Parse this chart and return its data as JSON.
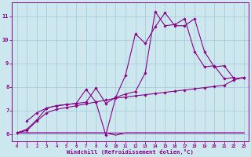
{
  "xlabel": "Windchill (Refroidissement éolien,°C)",
  "background_color": "#cce8ee",
  "line_color": "#880088",
  "xlim": [
    -0.5,
    23.5
  ],
  "ylim": [
    5.7,
    11.6
  ],
  "xticks": [
    0,
    1,
    2,
    3,
    4,
    5,
    6,
    7,
    8,
    9,
    10,
    11,
    12,
    13,
    14,
    15,
    16,
    17,
    18,
    19,
    20,
    21,
    22,
    23
  ],
  "yticks": [
    6,
    7,
    8,
    9,
    10,
    11
  ],
  "line1_x": [
    0,
    1,
    2,
    3,
    4,
    5,
    6,
    7,
    8,
    9,
    10,
    11,
    12,
    13,
    14,
    15,
    16,
    17,
    18,
    19,
    20,
    21,
    22,
    23
  ],
  "line1_y": [
    6.05,
    6.05,
    6.05,
    6.05,
    6.05,
    6.05,
    6.05,
    6.05,
    6.05,
    6.05,
    5.95,
    6.05,
    6.05,
    6.05,
    6.05,
    6.05,
    6.05,
    6.05,
    6.05,
    6.05,
    6.05,
    6.05,
    6.05,
    6.05
  ],
  "line2_x": [
    0,
    1,
    2,
    3,
    4,
    5,
    6,
    7,
    8,
    9,
    10,
    11,
    12,
    13,
    14,
    15,
    16,
    17,
    18,
    19,
    20,
    21,
    22,
    23
  ],
  "line2_y": [
    6.05,
    6.05,
    6.05,
    6.05,
    6.05,
    6.05,
    6.05,
    6.05,
    6.05,
    6.05,
    6.05,
    6.05,
    6.05,
    6.05,
    6.05,
    6.05,
    6.05,
    6.05,
    6.05,
    6.05,
    6.05,
    6.05,
    6.05,
    6.05
  ],
  "line3_x": [
    1,
    2,
    3,
    4,
    5,
    6,
    7,
    8,
    9,
    10,
    11,
    12,
    13,
    14,
    15,
    16,
    17,
    18,
    19,
    20,
    21,
    22,
    23
  ],
  "line3_y": [
    6.55,
    6.9,
    7.1,
    7.2,
    7.25,
    7.3,
    7.35,
    7.95,
    7.3,
    7.55,
    8.5,
    10.25,
    9.85,
    10.55,
    11.15,
    10.6,
    10.6,
    10.9,
    9.5,
    8.85,
    8.9,
    8.35,
    8.4
  ],
  "line4_x": [
    0,
    1,
    2,
    3,
    4,
    5,
    6,
    7,
    8,
    9,
    10,
    11,
    12,
    13,
    14,
    15,
    16,
    17,
    18,
    19,
    20,
    21,
    22,
    23
  ],
  "line4_y": [
    6.05,
    6.15,
    6.55,
    6.9,
    7.05,
    7.12,
    7.2,
    7.28,
    7.36,
    7.44,
    7.52,
    7.57,
    7.62,
    7.67,
    7.72,
    7.77,
    7.82,
    7.87,
    7.92,
    7.97,
    8.02,
    8.07,
    8.3,
    8.4
  ],
  "line5_x": [
    0,
    1,
    2,
    3,
    4,
    5,
    6,
    7,
    8,
    9,
    10,
    11,
    12,
    13,
    14,
    15,
    16,
    17,
    18,
    19,
    20,
    21,
    22,
    23
  ],
  "line5_y": [
    6.05,
    6.2,
    6.6,
    7.1,
    7.2,
    7.25,
    7.3,
    7.9,
    7.35,
    5.95,
    7.55,
    7.7,
    7.8,
    8.6,
    11.2,
    10.6,
    10.65,
    10.9,
    9.5,
    8.85,
    8.9,
    8.35,
    8.4,
    8.4
  ]
}
